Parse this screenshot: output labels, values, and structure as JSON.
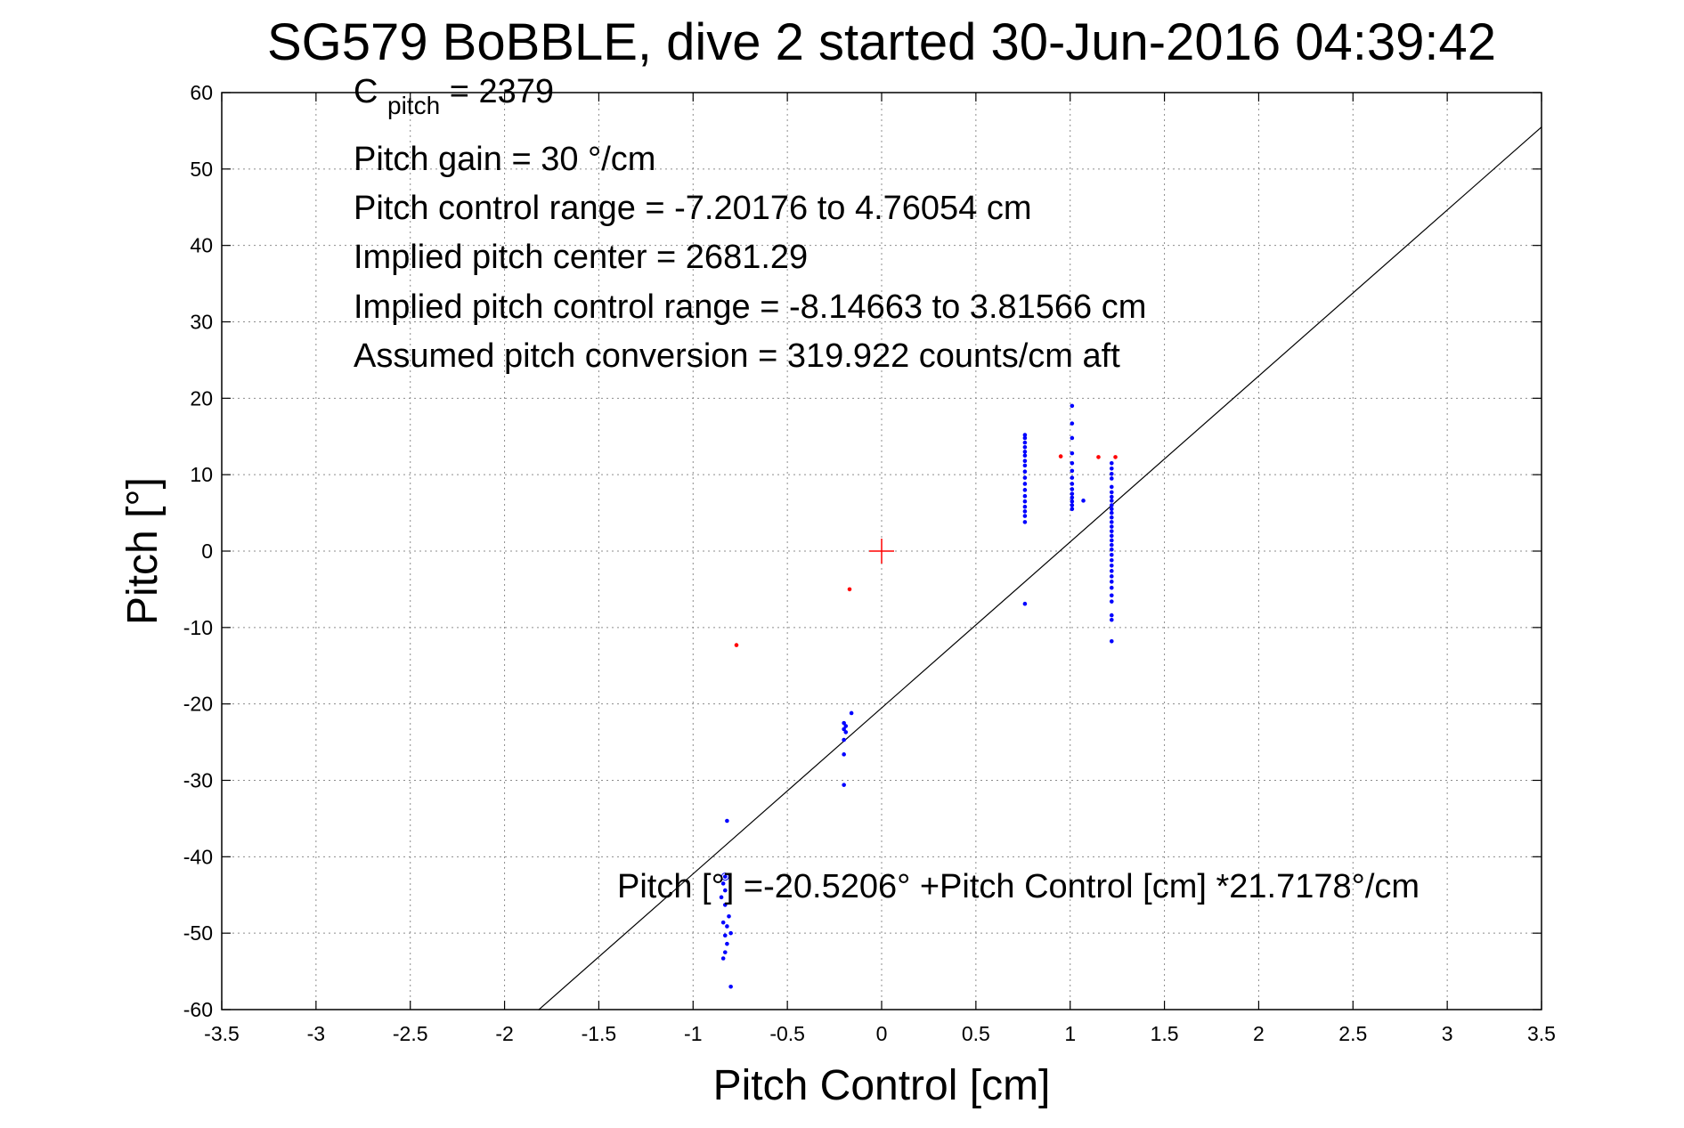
{
  "chart_data": {
    "type": "scatter",
    "title": "SG579 BoBBLE, dive 2 started 30-Jun-2016 04:39:42",
    "xlabel": "Pitch Control [cm]",
    "ylabel": "Pitch [°]",
    "xlim": [
      -3.5,
      3.5
    ],
    "ylim": [
      -60,
      60
    ],
    "xticks": [
      -3.5,
      -3,
      -2.5,
      -2,
      -1.5,
      -1,
      -0.5,
      0,
      0.5,
      1,
      1.5,
      2,
      2.5,
      3,
      3.5
    ],
    "yticks": [
      -60,
      -50,
      -40,
      -30,
      -20,
      -10,
      0,
      10,
      20,
      30,
      40,
      50,
      60
    ],
    "xtick_labels": [
      "-3.5",
      "-3",
      "-2.5",
      "-2",
      "-1.5",
      "-1",
      "-0.5",
      "0",
      "0.5",
      "1",
      "1.5",
      "2",
      "2.5",
      "3",
      "3.5"
    ],
    "ytick_labels": [
      "-60",
      "-50",
      "-40",
      "-30",
      "-20",
      "-10",
      "0",
      "10",
      "20",
      "30",
      "40",
      "50",
      "60"
    ],
    "grid": true,
    "annotations": {
      "cpitch_main": "C",
      "cpitch_sub": "pitch",
      "cpitch_value": " = 2379",
      "lines": [
        "Pitch gain = 30 °/cm",
        "Pitch control range = -7.20176 to 4.76054 cm",
        "Implied pitch center = 2681.29",
        "Implied pitch control range = -8.14663 to 3.81566 cm",
        "Assumed pitch conversion = 319.922 counts/cm aft"
      ],
      "fit_text": "Pitch [°] =-20.5206° +Pitch Control [cm] *21.7178°/cm"
    },
    "fit_line": {
      "intercept": -20.5206,
      "slope": 21.7178,
      "x_range": [
        -1.82,
        3.5
      ]
    },
    "center_marker": {
      "x": 0,
      "y": 0,
      "color": "#ff0000"
    },
    "series": [
      {
        "color": "#0000ff",
        "points": [
          [
            -0.82,
            -35.3
          ],
          [
            -0.83,
            -42.6
          ],
          [
            -0.84,
            -43.5
          ],
          [
            -0.83,
            -44.4
          ],
          [
            -0.85,
            -45.3
          ],
          [
            -0.83,
            -46.3
          ],
          [
            -0.81,
            -47.8
          ],
          [
            -0.84,
            -48.6
          ],
          [
            -0.82,
            -49.1
          ],
          [
            -0.8,
            -50.0
          ],
          [
            -0.83,
            -50.3
          ],
          [
            -0.82,
            -51.4
          ],
          [
            -0.83,
            -52.5
          ],
          [
            -0.84,
            -53.3
          ],
          [
            -0.8,
            -57.0
          ],
          [
            -0.16,
            -21.2
          ],
          [
            -0.2,
            -22.5
          ],
          [
            -0.19,
            -22.9
          ],
          [
            -0.2,
            -23.3
          ],
          [
            -0.19,
            -23.7
          ],
          [
            -0.2,
            -24.7
          ],
          [
            -0.2,
            -26.6
          ],
          [
            -0.2,
            -30.6
          ],
          [
            0.76,
            15.2
          ],
          [
            0.76,
            14.8
          ],
          [
            0.76,
            14.2
          ],
          [
            0.76,
            13.6
          ],
          [
            0.76,
            13.0
          ],
          [
            0.76,
            12.5
          ],
          [
            0.76,
            11.8
          ],
          [
            0.76,
            11.2
          ],
          [
            0.76,
            10.4
          ],
          [
            0.76,
            9.6
          ],
          [
            0.76,
            8.8
          ],
          [
            0.76,
            8.0
          ],
          [
            0.76,
            7.2
          ],
          [
            0.76,
            6.5
          ],
          [
            0.76,
            5.8
          ],
          [
            0.76,
            5.2
          ],
          [
            0.76,
            4.6
          ],
          [
            0.76,
            3.8
          ],
          [
            0.76,
            -6.9
          ],
          [
            1.01,
            19.0
          ],
          [
            1.01,
            16.7
          ],
          [
            1.01,
            14.8
          ],
          [
            1.01,
            12.8
          ],
          [
            1.01,
            11.5
          ],
          [
            1.01,
            10.5
          ],
          [
            1.01,
            9.6
          ],
          [
            1.01,
            8.8
          ],
          [
            1.01,
            8.1
          ],
          [
            1.01,
            7.5
          ],
          [
            1.01,
            7.0
          ],
          [
            1.01,
            6.5
          ],
          [
            1.01,
            6.0
          ],
          [
            1.01,
            5.5
          ],
          [
            1.07,
            6.6
          ],
          [
            1.22,
            11.5
          ],
          [
            1.22,
            10.8
          ],
          [
            1.22,
            10.1
          ],
          [
            1.22,
            9.5
          ],
          [
            1.22,
            8.4
          ],
          [
            1.22,
            7.7
          ],
          [
            1.22,
            7.1
          ],
          [
            1.22,
            6.6
          ],
          [
            1.22,
            6.0
          ],
          [
            1.22,
            5.5
          ],
          [
            1.22,
            5.0
          ],
          [
            1.22,
            4.4
          ],
          [
            1.22,
            3.8
          ],
          [
            1.22,
            3.2
          ],
          [
            1.22,
            2.6
          ],
          [
            1.22,
            2.0
          ],
          [
            1.22,
            1.4
          ],
          [
            1.22,
            0.8
          ],
          [
            1.22,
            0.2
          ],
          [
            1.22,
            -0.5
          ],
          [
            1.22,
            -1.2
          ],
          [
            1.22,
            -1.9
          ],
          [
            1.22,
            -2.6
          ],
          [
            1.22,
            -3.3
          ],
          [
            1.22,
            -4.0
          ],
          [
            1.22,
            -4.8
          ],
          [
            1.22,
            -5.8
          ],
          [
            1.22,
            -6.6
          ],
          [
            1.22,
            -8.4
          ],
          [
            1.22,
            -9.0
          ],
          [
            1.22,
            -11.8
          ]
        ]
      },
      {
        "color": "#ff0000",
        "points": [
          [
            -0.77,
            -12.3
          ],
          [
            -0.17,
            -5.0
          ],
          [
            0.95,
            12.4
          ],
          [
            1.15,
            12.3
          ],
          [
            1.24,
            12.3
          ]
        ]
      }
    ]
  }
}
